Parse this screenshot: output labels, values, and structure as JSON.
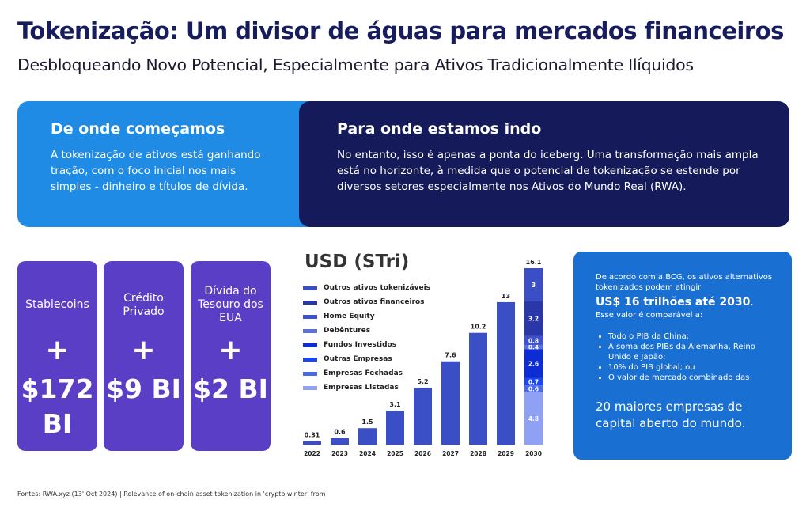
{
  "header": {
    "title": "Tokenização: Um divisor de águas para mercados financeiros",
    "subtitle": "Desbloqueando Novo Potencial, Especialmente para Ativos Tradicionalmente Ilíquidos"
  },
  "panels": {
    "left": {
      "heading": "De onde começamos",
      "text": "A tokenização de ativos está ganhando tração, com o foco inicial nos mais simples - dinheiro e títulos de dívida."
    },
    "right": {
      "heading": "Para onde estamos indo",
      "text": "No entanto, isso é apenas a ponta do iceberg. Uma transformação mais ampla está no horizonte, à medida que o potencial de tokenização se estende por diversos setores especialmente nos Ativos do Mundo Real (RWA)."
    }
  },
  "cards": [
    {
      "label": "Stablecoins",
      "plus": "+",
      "amount": "$172 BI"
    },
    {
      "label": "Crédito Privado",
      "plus": "+",
      "amount": "$9 BI"
    },
    {
      "label": "Dívida do Tesouro dos EUA",
      "plus": "+",
      "amount": "$2 BI"
    }
  ],
  "info": {
    "intro": "De acordo com a BCG, os ativos alternativos tokenizados podem atingir",
    "highlight": "US$ 16 trilhões até 2030",
    "period": ".",
    "compare": "Esse valor é comparável a:",
    "bullets": [
      "Todo o PIB da China;",
      "A soma dos PIBs da Alemanha, Reino Unido e Japão:",
      "10% do PIB global; ou",
      "O valor de mercado combinado das"
    ],
    "closing": "20 maiores empresas de capital aberto do mundo."
  },
  "footer": "Fontes: RWA.xyz (13' Oct 2024) | Relevance of on-chain asset tokenization in 'crypto winter' from",
  "chart_data": {
    "type": "bar",
    "title": "USD (STri)",
    "categories": [
      "2022",
      "2023",
      "2024",
      "2025",
      "2026",
      "2027",
      "2028",
      "2029",
      "2030"
    ],
    "values": [
      0.31,
      0.6,
      1.5,
      3.1,
      5.2,
      7.6,
      10.2,
      13,
      16.1
    ],
    "value_labels": [
      "0.31",
      "0.6",
      "1.5",
      "3.1",
      "5.2",
      "7.6",
      "10.2",
      "13",
      "16.1"
    ],
    "bar_color": "#3a4ec6",
    "ylim": [
      0,
      16.1
    ],
    "stacked_2030": [
      {
        "name": "Outros ativos tokenizáveis",
        "value": 3,
        "label": "3",
        "color": "#3a4ec6"
      },
      {
        "name": "Outros ativos financeiros",
        "value": 3.2,
        "label": "3.2",
        "color": "#2a37a8"
      },
      {
        "name": "Home Equity",
        "value": 0.8,
        "label": "0.8",
        "color": "#3c52d0"
      },
      {
        "name": "Debêntures",
        "value": 0.4,
        "label": "0.4",
        "color": "#5a70da"
      },
      {
        "name": "Fundos Investidos",
        "value": 2.6,
        "label": "2.6",
        "color": "#0c2cd4"
      },
      {
        "name": "Outras Empresas",
        "value": 0.7,
        "label": "0.7",
        "color": "#1c46f0"
      },
      {
        "name": "Empresas Fechadas",
        "value": 0.6,
        "label": "0.6",
        "color": "#4a68ea"
      },
      {
        "name": "Empresas Listadas",
        "value": 4.8,
        "label": "4.8",
        "color": "#8fa1f2"
      }
    ]
  }
}
